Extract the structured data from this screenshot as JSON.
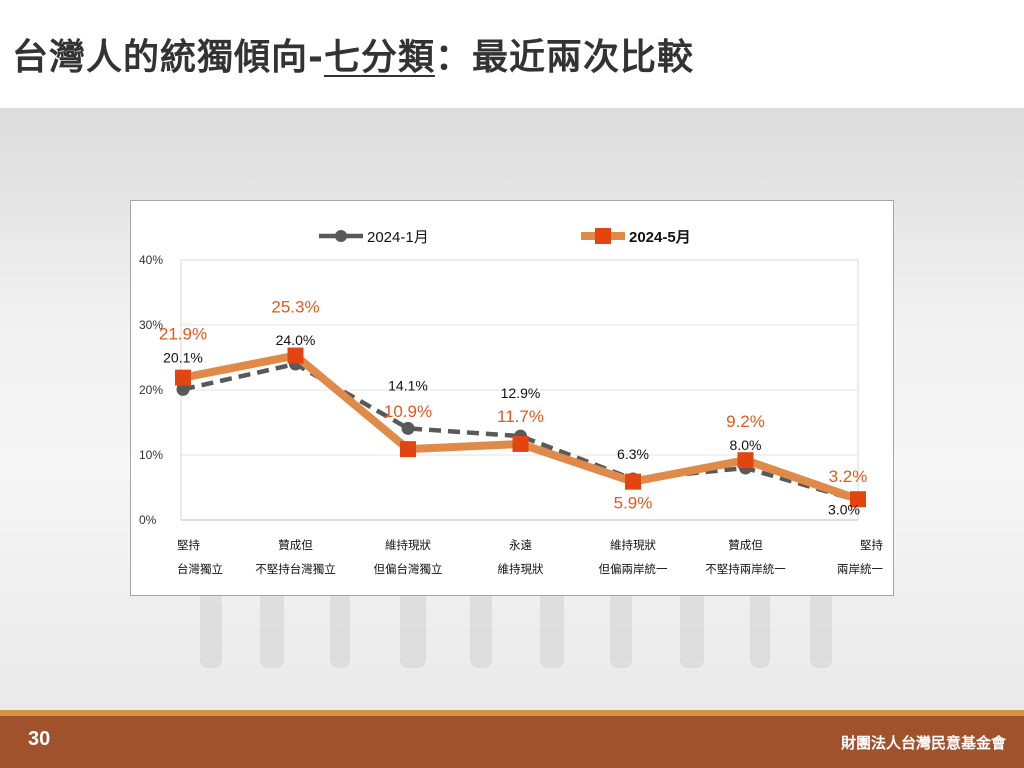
{
  "header": {
    "title_prefix": "台灣人的統獨傾向-",
    "title_underlined": "七分類",
    "title_suffix": "：最近兩次比較"
  },
  "footer": {
    "page_number": "30",
    "org_name": "財團法人台灣民意基金會"
  },
  "colors": {
    "series_a": "#595959",
    "series_b_line": "#e08a4a",
    "series_b_marker": "#e2450f",
    "series_b_label": "#e05a1e",
    "footer_bar": "#a0522d",
    "footer_stripe": "#d49540"
  },
  "chart_data": {
    "type": "line",
    "categories": [
      [
        "堅持",
        "台灣獨立"
      ],
      [
        "贊成但",
        "不堅持台灣獨立"
      ],
      [
        "維持現狀",
        "但偏台灣獨立"
      ],
      [
        "永遠",
        "維持現狀"
      ],
      [
        "維持現狀",
        "但偏兩岸統一"
      ],
      [
        "贊成但",
        "不堅持兩岸統一"
      ],
      [
        "堅持",
        "兩岸統一"
      ]
    ],
    "series": [
      {
        "name": "2024-1月",
        "values": [
          20.1,
          24.0,
          14.1,
          12.9,
          6.3,
          8.0,
          3.0
        ],
        "labels": [
          "20.1%",
          "24.0%",
          "14.1%",
          "12.9%",
          "6.3%",
          "8.0%",
          "3.0%"
        ],
        "style": "dashed",
        "marker": "circle"
      },
      {
        "name": "2024-5月",
        "values": [
          21.9,
          25.3,
          10.9,
          11.7,
          5.9,
          9.2,
          3.2
        ],
        "labels": [
          "21.9%",
          "25.3%",
          "10.9%",
          "11.7%",
          "5.9%",
          "9.2%",
          "3.2%"
        ],
        "style": "solid",
        "marker": "square"
      }
    ],
    "ylim": [
      0,
      40
    ],
    "yticks": [
      0,
      10,
      20,
      30,
      40
    ],
    "ytick_labels": [
      "0%",
      "10%",
      "20%",
      "30%",
      "40%"
    ],
    "grid": true,
    "legend_position": "top-center"
  }
}
